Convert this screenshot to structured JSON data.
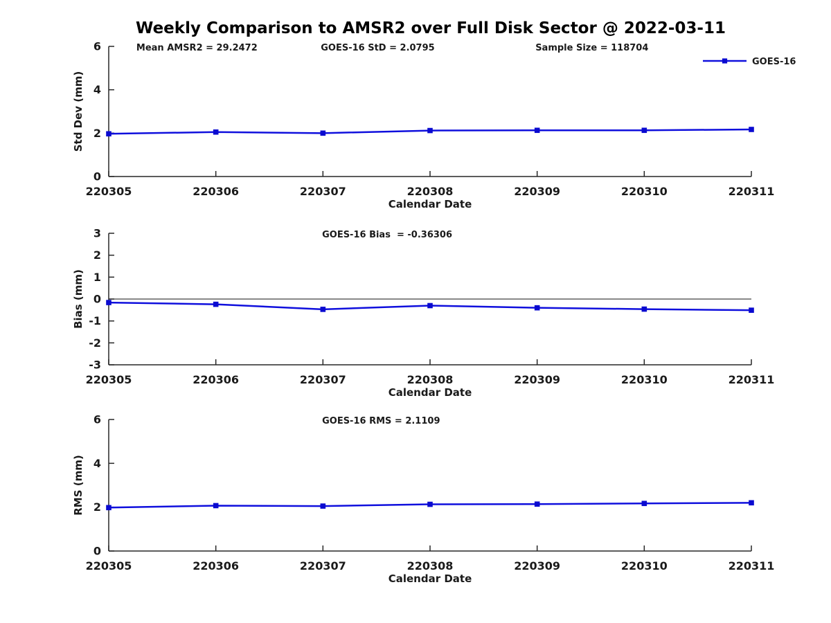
{
  "title": "Weekly Comparison to AMSR2 over Full Disk Sector @ 2022-03-11",
  "x_axis_label": "Calendar Date",
  "categories": [
    "220305",
    "220306",
    "220307",
    "220308",
    "220309",
    "220310",
    "220311"
  ],
  "legend": {
    "labels": [
      "GOES-16"
    ],
    "position": "top-right-outside"
  },
  "colors": {
    "line": "#0f0fdd",
    "marker": "#0a0ad0",
    "axis": "#262626",
    "text": "#1a1a1a",
    "zero_line": "#404040",
    "title": "#000000",
    "background": "#ffffff"
  },
  "chart_data": [
    {
      "id": "std-dev",
      "type": "line",
      "title": "",
      "xlabel": "Calendar Date",
      "ylabel": "Std Dev (mm)",
      "ylim": [
        0,
        6
      ],
      "yticks": [
        "0",
        "2",
        "4",
        "6"
      ],
      "grid": false,
      "legend_entries": [
        "GOES-16"
      ],
      "categories": [
        "220305",
        "220306",
        "220307",
        "220308",
        "220309",
        "220310",
        "220311"
      ],
      "series": [
        {
          "name": "GOES-16",
          "values": [
            1.97,
            2.05,
            2.0,
            2.12,
            2.13,
            2.13,
            2.17
          ]
        }
      ],
      "annotations": [
        "Mean AMSR2 = 29.2472",
        "GOES-16 StD = 2.0795",
        "Sample Size = 118704"
      ]
    },
    {
      "id": "bias",
      "type": "line",
      "title": "",
      "xlabel": "Calendar Date",
      "ylabel": "Bias (mm)",
      "ylim": [
        -3,
        3
      ],
      "yticks": [
        "-3",
        "-2",
        "-1",
        "0",
        "1",
        "2",
        "3"
      ],
      "grid": false,
      "zero_line": true,
      "categories": [
        "220305",
        "220306",
        "220307",
        "220308",
        "220309",
        "220310",
        "220311"
      ],
      "series": [
        {
          "name": "GOES-16",
          "values": [
            -0.16,
            -0.24,
            -0.47,
            -0.3,
            -0.4,
            -0.46,
            -0.51
          ]
        }
      ],
      "annotations": [
        "GOES-16 Bias  = -0.36306"
      ]
    },
    {
      "id": "rms",
      "type": "line",
      "title": "",
      "xlabel": "Calendar Date",
      "ylabel": "RMS (mm)",
      "ylim": [
        0,
        6
      ],
      "yticks": [
        "0",
        "2",
        "4",
        "6"
      ],
      "grid": false,
      "categories": [
        "220305",
        "220306",
        "220307",
        "220308",
        "220309",
        "220310",
        "220311"
      ],
      "series": [
        {
          "name": "GOES-16",
          "values": [
            1.98,
            2.07,
            2.05,
            2.13,
            2.14,
            2.17,
            2.2
          ]
        }
      ],
      "annotations": [
        "GOES-16 RMS = 2.1109"
      ]
    }
  ]
}
